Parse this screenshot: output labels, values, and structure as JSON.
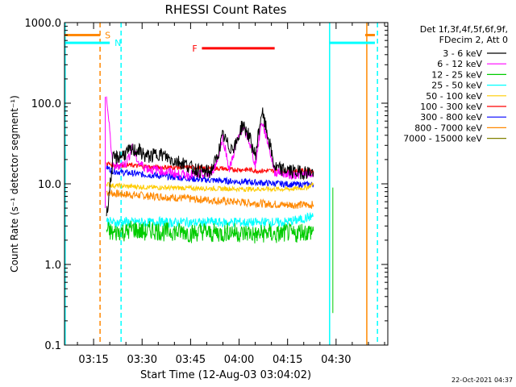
{
  "chart_data": {
    "type": "line",
    "title": "RHESSI Count Rates",
    "xlabel": "Start Time (12-Aug-03 03:04:02)",
    "ylabel": "Count Rate (s⁻¹ detector segment⁻¹)",
    "x_scale": "time",
    "y_scale": "log",
    "xlim_minutes": [
      186,
      286
    ],
    "ylim": [
      0.1,
      1000
    ],
    "x_ticks": [
      {
        "t": 195,
        "label": "03:15"
      },
      {
        "t": 210,
        "label": "03:30"
      },
      {
        "t": 225,
        "label": "03:45"
      },
      {
        "t": 240,
        "label": "04:00"
      },
      {
        "t": 255,
        "label": "04:15"
      },
      {
        "t": 270,
        "label": "04:30"
      }
    ],
    "y_ticks": [
      {
        "v": 0.1,
        "label": "0.1"
      },
      {
        "v": 1,
        "label": "1.0"
      },
      {
        "v": 10,
        "label": "10.0"
      },
      {
        "v": 100,
        "label": "100.0"
      },
      {
        "v": 1000,
        "label": "1000.0"
      }
    ],
    "legend": {
      "placement": "right-outside",
      "header": [
        "Det 1f,3f,4f,5f,6f,9f,",
        "FDecim 2, Att 0"
      ]
    },
    "series": [
      {
        "name": "3 - 6 keV",
        "color": "#000000",
        "x": [
          199,
          201,
          203,
          205,
          207,
          209,
          211,
          213,
          215,
          217,
          219,
          221,
          223,
          225,
          227,
          229,
          231,
          233,
          235,
          237,
          239,
          241,
          243,
          245,
          247,
          249,
          251,
          253,
          255,
          257,
          259,
          261,
          263
        ],
        "y": [
          4,
          20,
          22,
          24,
          26,
          26,
          22,
          22,
          24,
          22,
          20,
          19,
          18,
          16,
          15,
          14,
          14,
          20,
          40,
          28,
          30,
          55,
          40,
          22,
          80,
          38,
          16,
          15,
          15,
          14,
          14,
          14,
          14
        ]
      },
      {
        "name": "6 - 12 keV",
        "color": "#ff00ff",
        "x": [
          199,
          201,
          203,
          205,
          207,
          209,
          211,
          213,
          215,
          217,
          219,
          221,
          223,
          225,
          227,
          229,
          231,
          233,
          235,
          237,
          239,
          241,
          243,
          245,
          247,
          249,
          251,
          253,
          255,
          257,
          259,
          261,
          263
        ],
        "y": [
          120,
          16,
          17,
          18,
          28,
          18,
          16,
          15,
          15,
          14,
          14,
          13,
          13,
          13,
          13,
          13,
          13,
          18,
          38,
          15,
          30,
          50,
          35,
          17,
          60,
          32,
          14,
          14,
          13,
          13,
          13,
          13,
          13
        ]
      },
      {
        "name": "12 - 25 keV",
        "color": "#00cc00",
        "x": [
          199,
          201,
          203,
          205,
          207,
          209,
          211,
          213,
          215,
          217,
          219,
          221,
          223,
          225,
          227,
          229,
          231,
          233,
          235,
          237,
          239,
          241,
          243,
          245,
          247,
          249,
          251,
          253,
          255,
          257,
          259,
          261,
          263
        ],
        "y": [
          2.7,
          2.4,
          2.6,
          2.5,
          2.8,
          2.6,
          2.5,
          2.7,
          2.6,
          2.5,
          2.6,
          2.5,
          2.6,
          2.4,
          2.5,
          2.6,
          2.4,
          2.5,
          2.4,
          2.6,
          2.5,
          2.4,
          2.5,
          2.3,
          2.4,
          2.5,
          2.3,
          2.4,
          2.5,
          2.3,
          2.6,
          2.5,
          2.6
        ]
      },
      {
        "name": "25 - 50 keV",
        "color": "#00ffff",
        "x": [
          199,
          201,
          203,
          205,
          207,
          209,
          211,
          213,
          215,
          217,
          219,
          221,
          223,
          225,
          227,
          229,
          231,
          233,
          235,
          237,
          239,
          241,
          243,
          245,
          247,
          249,
          251,
          253,
          255,
          257,
          259,
          261,
          263
        ],
        "y": [
          3.5,
          3.3,
          3.3,
          3.4,
          3.3,
          3.4,
          3.3,
          3.3,
          3.4,
          3.3,
          3.3,
          3.3,
          3.4,
          3.3,
          3.3,
          3.3,
          3.4,
          3.3,
          3.3,
          3.3,
          3.4,
          3.3,
          3.3,
          3.3,
          3.3,
          3.4,
          3.3,
          3.3,
          3.4,
          3.5,
          3.6,
          3.8,
          4
        ]
      },
      {
        "name": "50 - 100 keV",
        "color": "#ffcc00",
        "x": [
          199,
          201,
          203,
          205,
          207,
          209,
          211,
          213,
          215,
          217,
          219,
          221,
          223,
          225,
          227,
          229,
          231,
          233,
          235,
          237,
          239,
          241,
          243,
          245,
          247,
          249,
          251,
          253,
          255,
          257,
          259,
          261,
          263
        ],
        "y": [
          10,
          9.5,
          9.5,
          9.3,
          9.3,
          9.2,
          9.1,
          9,
          9,
          9,
          8.9,
          8.9,
          8.9,
          8.8,
          8.8,
          8.8,
          8.8,
          8.7,
          8.7,
          8.7,
          8.6,
          8.6,
          8.6,
          8.6,
          8.6,
          8.6,
          8.6,
          8.6,
          8.6,
          8.7,
          8.8,
          9,
          10
        ]
      },
      {
        "name": "100 - 300 keV",
        "color": "#ff0000",
        "x": [
          199,
          201,
          203,
          205,
          207,
          209,
          211,
          213,
          215,
          217,
          219,
          221,
          223,
          225,
          227,
          229,
          231,
          233,
          235,
          237,
          239,
          241,
          243,
          245,
          247,
          249,
          251,
          253,
          255,
          257,
          259,
          261,
          263
        ],
        "y": [
          18,
          17,
          17,
          17,
          17,
          16.5,
          16.5,
          16,
          16,
          16,
          16,
          16,
          16,
          16,
          16,
          15.5,
          15.5,
          15.5,
          15.5,
          15,
          15,
          15,
          15,
          14.5,
          14.5,
          14.5,
          14.5,
          14.5,
          14.5,
          14.5,
          14.5,
          14.5,
          14.5
        ]
      },
      {
        "name": "300 - 800 keV",
        "color": "#0000ff",
        "x": [
          199,
          201,
          203,
          205,
          207,
          209,
          211,
          213,
          215,
          217,
          219,
          221,
          223,
          225,
          227,
          229,
          231,
          233,
          235,
          237,
          239,
          241,
          243,
          245,
          247,
          249,
          251,
          253,
          255,
          257,
          259,
          261,
          263
        ],
        "y": [
          16,
          14.5,
          14,
          13.7,
          13.5,
          13.2,
          13,
          12.8,
          12.6,
          12.4,
          12.2,
          12,
          11.8,
          11.6,
          11.4,
          11.2,
          11.1,
          11,
          10.9,
          10.8,
          10.7,
          10.6,
          10.5,
          10.4,
          10.3,
          10.2,
          10.1,
          10,
          9.9,
          9.8,
          9.8,
          9.8,
          9.8
        ]
      },
      {
        "name": "800 - 7000 keV",
        "color": "#ff8800",
        "x": [
          199,
          201,
          203,
          205,
          207,
          209,
          211,
          213,
          215,
          217,
          219,
          221,
          223,
          225,
          227,
          229,
          231,
          233,
          235,
          237,
          239,
          241,
          243,
          245,
          247,
          249,
          251,
          253,
          255,
          257,
          259,
          261,
          263
        ],
        "y": [
          8,
          7.6,
          7.5,
          7.4,
          7.3,
          7.2,
          7.1,
          7,
          7,
          6.9,
          6.8,
          6.7,
          6.6,
          6.5,
          6.4,
          6.4,
          6.3,
          6.2,
          6.1,
          6,
          6,
          5.9,
          5.8,
          5.8,
          5.7,
          5.6,
          5.6,
          5.5,
          5.5,
          5.5,
          5.5,
          5.5,
          5.5
        ]
      },
      {
        "name": "7000 - 15000 keV",
        "color": "#808000",
        "x": [],
        "y": []
      }
    ],
    "annotations": [
      {
        "label": "S",
        "color": "#ff8800",
        "kind": "segment",
        "y": 700,
        "x_ranges": [
          [
            186,
            197
          ],
          [
            279,
            282
          ]
        ]
      },
      {
        "label": "N",
        "color": "#00ffff",
        "kind": "segment",
        "y": 560,
        "x_ranges": [
          [
            186,
            200
          ],
          [
            268,
            282
          ]
        ]
      },
      {
        "label": "F",
        "color": "#ff0000",
        "kind": "segment",
        "y": 480,
        "x_ranges": [
          [
            228.5,
            251
          ]
        ]
      }
    ],
    "vertical_lines": [
      {
        "t": 186.2,
        "color": "#00ffff",
        "style": "solid"
      },
      {
        "t": 197,
        "color": "#ff8800",
        "style": "dashed"
      },
      {
        "t": 203.5,
        "color": "#00ffff",
        "style": "dashed"
      },
      {
        "t": 268,
        "color": "#00ffff",
        "style": "solid"
      },
      {
        "t": 279.5,
        "color": "#ff8800",
        "style": "solid"
      },
      {
        "t": 282.8,
        "color": "#00ffff",
        "style": "dashed"
      }
    ],
    "series_span_minutes": [
      198.5,
      269
    ]
  },
  "footer_timestamp": "22-Oct-2021 04:37"
}
